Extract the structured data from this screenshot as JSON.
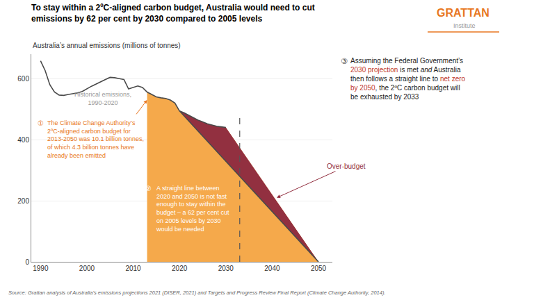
{
  "chart_data": {
    "type": "line",
    "title": "To stay within a 2ºC-aligned carbon budget, Australia would need to cut\nemissions by 62 per cent by 2030 compared to 2005 levels",
    "subtitle": "Australia’s annual emissions (millions of tonnes)",
    "source": "Source: Grattan analysis of Australia’s emissions projections 2021 (DISER, 2021) and Targets and Progress Review Final Report (Climate Change Authority, 2014).",
    "xlim": [
      1988,
      2053
    ],
    "xticks": [
      1990,
      2000,
      2010,
      2020,
      2030,
      2040,
      2050
    ],
    "ylim": [
      0,
      680
    ],
    "yticks": [
      0,
      200,
      400,
      600
    ],
    "grid": "y",
    "series": [
      {
        "type": "area",
        "color": "#F5A94B",
        "x": [
          2013,
          2014,
          2015,
          2016,
          2017,
          2018,
          2019,
          2020,
          2021,
          2022,
          2023,
          2024,
          2025,
          2026,
          2027,
          2028,
          2029,
          2030,
          2050
        ],
        "values": [
          556,
          548,
          540,
          537,
          535,
          530,
          520,
          494,
          488,
          480,
          472,
          464,
          458,
          452,
          448,
          444,
          442,
          440,
          0
        ]
      },
      {
        "type": "area",
        "color": "#923040",
        "x": [
          2020,
          2021,
          2022,
          2023,
          2024,
          2025,
          2026,
          2027,
          2028,
          2029,
          2030,
          2050
        ],
        "values": [
          494,
          488,
          480,
          472,
          464,
          458,
          452,
          448,
          444,
          442,
          440,
          0
        ],
        "lower": {
          "x": [
            2020,
            2050
          ],
          "values": [
            494,
            0
          ]
        }
      },
      {
        "type": "line",
        "color": "#4A4A4A",
        "line_style": "solid",
        "x": [
          1990,
          1991,
          1992,
          1993,
          1994,
          1995,
          1996,
          1997,
          1998,
          1999,
          2000,
          2001,
          2002,
          2003,
          2004,
          2005,
          2006,
          2007,
          2008,
          2009,
          2010,
          2011,
          2012,
          2013,
          2014,
          2015,
          2016,
          2017,
          2018,
          2019,
          2020
        ],
        "values": [
          658,
          626,
          580,
          556,
          546,
          545,
          548,
          550,
          553,
          558,
          567,
          575,
          582,
          590,
          597,
          604,
          603,
          600,
          597,
          566,
          571,
          576,
          571,
          556,
          548,
          540,
          537,
          535,
          530,
          520,
          494
        ]
      },
      {
        "type": "line",
        "color": "#4A4A4A",
        "line_style": "solid",
        "x": [
          2020,
          2021,
          2022,
          2023,
          2024,
          2025,
          2026,
          2027,
          2028,
          2029,
          2030
        ],
        "values": [
          494,
          488,
          480,
          472,
          464,
          458,
          452,
          448,
          444,
          442,
          440
        ]
      },
      {
        "type": "line",
        "color": "#4A4A4A",
        "line_style": "solid",
        "x": [
          2020,
          2050
        ],
        "values": [
          494,
          0
        ]
      }
    ],
    "vlines": [
      {
        "x": 2033,
        "color": "#555555",
        "line_style": "dashed"
      }
    ],
    "annotations": [
      {
        "text": "GRATTAN",
        "color": "#E87722"
      },
      {
        "text": "Institute",
        "color": "#999999"
      },
      {
        "text": "Historical emissions,\n1990-2020",
        "color": "#999999"
      },
      {
        "text": "①",
        "color": "#E87722"
      },
      {
        "text": "The Climate Change Authority’s\n2ºC-aligned carbon budget for\n2013-2050 was 10.1 billion tonnes,\nof which 4.3 billion tonnes have\nalready been emitted",
        "color": "#E87722"
      },
      {
        "text": "②",
        "color": "#FFFFFF"
      },
      {
        "text": "A straight line between\n2020 and 2050 is not fast\nenough to stay within the\nbudget – a 62 per cent cut\non 2005 levels by 2030\nwould be needed",
        "color": "#FFFFFF"
      },
      {
        "text": "③",
        "color": "#333333"
      },
      {
        "segments": [
          [
            {
              "text": "Assuming the Federal Government’s",
              "color": "#222222"
            }
          ],
          [
            {
              "text": "2030 projection",
              "color": "#C0392B"
            },
            {
              "text": " is met ",
              "color": "#222222"
            },
            {
              "text": "and",
              "color": "#222222",
              "italic": true
            },
            {
              "text": " Australia",
              "color": "#222222"
            }
          ],
          [
            {
              "text": "then follows a straight line to ",
              "color": "#222222"
            },
            {
              "text": "net zero",
              "color": "#C0392B"
            }
          ],
          [
            {
              "text": "by 2050",
              "color": "#C0392B"
            },
            {
              "text": ", the 2ºC carbon budget will",
              "color": "#222222"
            }
          ],
          [
            {
              "text": "be exhausted by 2033",
              "color": "#222222"
            }
          ]
        ]
      },
      {
        "text": "Over-budget",
        "color": "#923040"
      }
    ]
  }
}
